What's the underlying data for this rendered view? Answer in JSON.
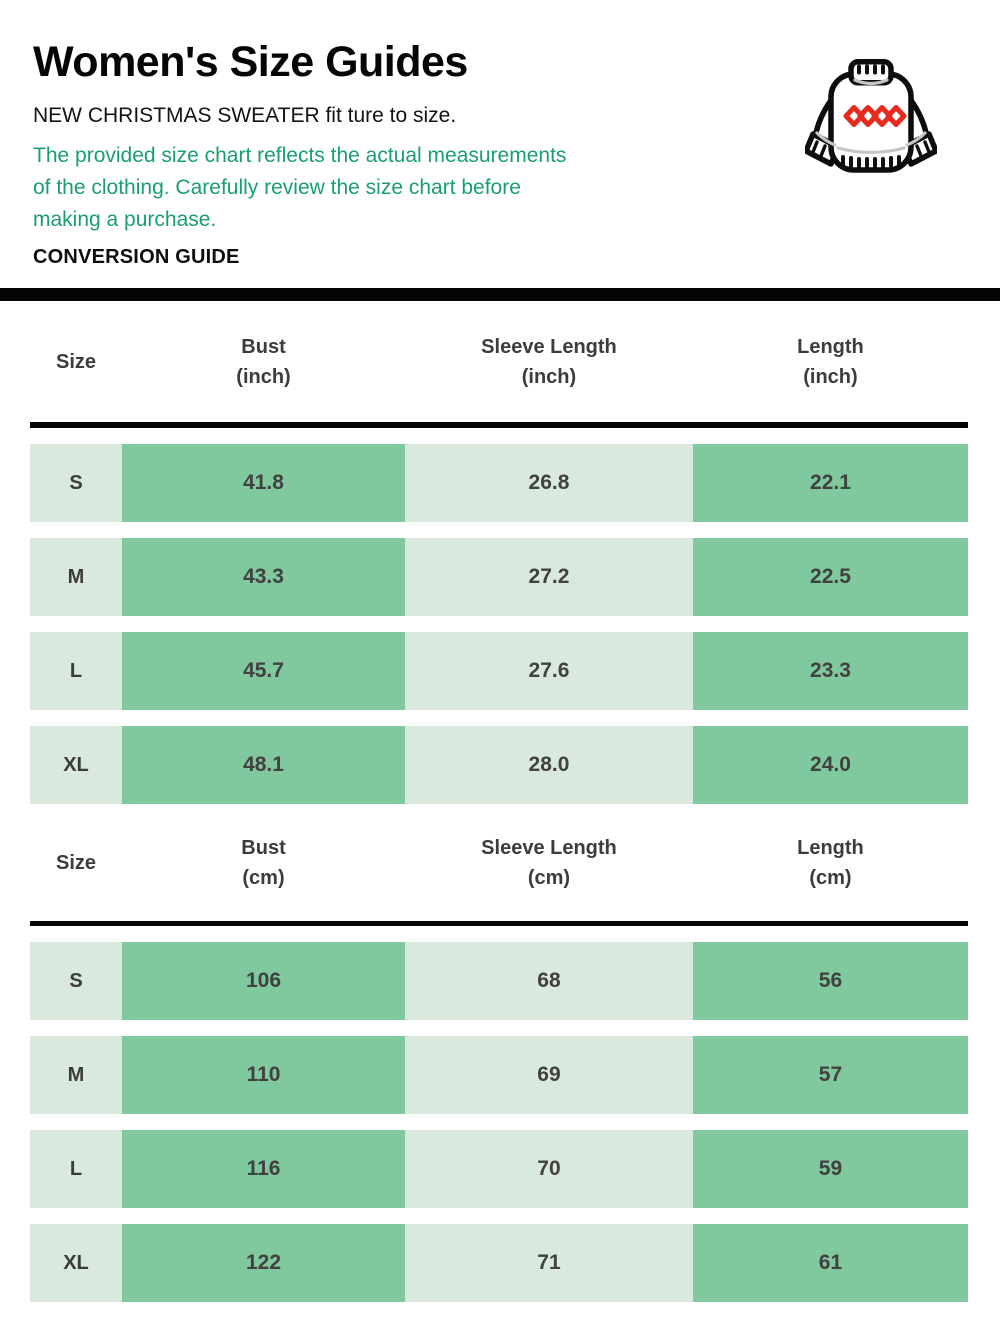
{
  "header": {
    "title": "Women's Size Guides",
    "subtitle": "NEW CHRISTMAS SWEATER fit ture to size.",
    "note_lines": [
      "The provided size chart reflects the actual measurements",
      "of the clothing. Carefully review the size chart before",
      "making a purchase."
    ],
    "section_label": "CONVERSION GUIDE"
  },
  "icon": {
    "name": "christmas-sweater",
    "outline_color": "#0d0d0d",
    "diamond_color": "#e62b1e",
    "shade_color": "#c6c6c6"
  },
  "colors": {
    "note_green": "#1a9e71",
    "cell_green": "#80c89d",
    "cell_light_green": "#d9e9de",
    "rule_black": "#060606",
    "cell_text": "#414141"
  },
  "tables": [
    {
      "id": "inch",
      "headers": [
        {
          "label": "Size",
          "sub": ""
        },
        {
          "label": "Bust",
          "sub": "(inch)"
        },
        {
          "label": "Sleeve Length",
          "sub": "(inch)"
        },
        {
          "label": "Length",
          "sub": "(inch)"
        }
      ],
      "rows": [
        {
          "size": "S",
          "values": [
            "41.8",
            "26.8",
            "22.1"
          ]
        },
        {
          "size": "M",
          "values": [
            "43.3",
            "27.2",
            "22.5"
          ]
        },
        {
          "size": "L",
          "values": [
            "45.7",
            "27.6",
            "23.3"
          ]
        },
        {
          "size": "XL",
          "values": [
            "48.1",
            "28.0",
            "24.0"
          ]
        }
      ]
    },
    {
      "id": "cm",
      "headers": [
        {
          "label": "Size",
          "sub": ""
        },
        {
          "label": "Bust",
          "sub": "(cm)"
        },
        {
          "label": "Sleeve Length",
          "sub": "(cm)"
        },
        {
          "label": "Length",
          "sub": "(cm)"
        }
      ],
      "rows": [
        {
          "size": "S",
          "values": [
            "106",
            "68",
            "56"
          ]
        },
        {
          "size": "M",
          "values": [
            "110",
            "69",
            "57"
          ]
        },
        {
          "size": "L",
          "values": [
            "116",
            "70",
            "59"
          ]
        },
        {
          "size": "XL",
          "values": [
            "122",
            "71",
            "61"
          ]
        }
      ]
    }
  ]
}
